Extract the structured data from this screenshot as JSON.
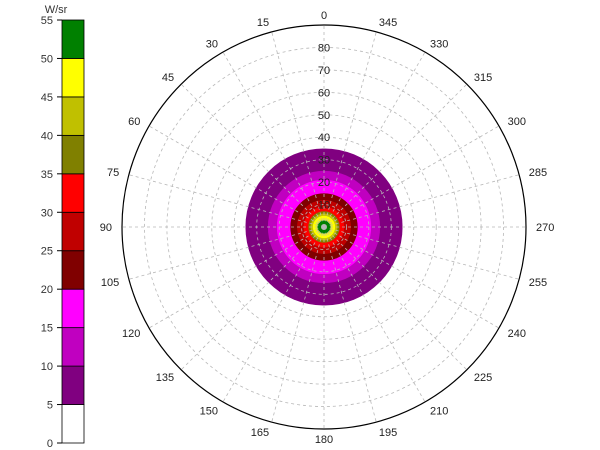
{
  "chart_data": {
    "type": "heatmap",
    "subtype": "polar-intensity-plot",
    "title": "",
    "colorbar": {
      "unit": "W/sr",
      "ticks": [
        0,
        5,
        10,
        15,
        20,
        25,
        30,
        35,
        40,
        45,
        50,
        55
      ],
      "bands": [
        {
          "min": 0,
          "max": 5,
          "color": "#ffffff"
        },
        {
          "min": 5,
          "max": 10,
          "color": "#800080"
        },
        {
          "min": 10,
          "max": 15,
          "color": "#c000c0"
        },
        {
          "min": 15,
          "max": 20,
          "color": "#ff00ff"
        },
        {
          "min": 20,
          "max": 25,
          "color": "#800000"
        },
        {
          "min": 25,
          "max": 30,
          "color": "#c00000"
        },
        {
          "min": 30,
          "max": 35,
          "color": "#ff0000"
        },
        {
          "min": 35,
          "max": 40,
          "color": "#808000"
        },
        {
          "min": 40,
          "max": 45,
          "color": "#c0c000"
        },
        {
          "min": 45,
          "max": 50,
          "color": "#ffff00"
        },
        {
          "min": 50,
          "max": 55,
          "color": "#008000"
        }
      ],
      "placement": "left"
    },
    "angular_axis": {
      "unit": "degrees",
      "step": 15,
      "zero_position": "top",
      "direction": "counterclockwise",
      "labels": [
        "0",
        "15",
        "30",
        "45",
        "60",
        "75",
        "90",
        "105",
        "120",
        "135",
        "150",
        "165",
        "180",
        "195",
        "210",
        "225",
        "240",
        "255",
        "270",
        "285",
        "300",
        "315",
        "330",
        "345"
      ]
    },
    "radial_axis": {
      "range": [
        0,
        90
      ],
      "labels": [
        "10",
        "20",
        "30",
        "40",
        "50",
        "60",
        "70",
        "80"
      ],
      "label_angle": 0,
      "grid": true,
      "grid_style": "dashed"
    },
    "rings": [
      {
        "r_outer": 35,
        "value_band": [
          5,
          10
        ]
      },
      {
        "r_outer": 25,
        "value_band": [
          10,
          15
        ]
      },
      {
        "r_outer": 21,
        "value_band": [
          15,
          20
        ]
      },
      {
        "r_outer": 15,
        "value_band": [
          20,
          25
        ]
      },
      {
        "r_outer": 12,
        "value_band": [
          25,
          30
        ]
      },
      {
        "r_outer": 9,
        "value_band": [
          30,
          35
        ]
      },
      {
        "r_outer": 7,
        "value_band": [
          35,
          40
        ]
      },
      {
        "r_outer": 6,
        "value_band": [
          40,
          45
        ]
      },
      {
        "r_outer": 5,
        "value_band": [
          45,
          50
        ]
      },
      {
        "r_outer": 3,
        "value_band": [
          50,
          55
        ]
      }
    ]
  }
}
